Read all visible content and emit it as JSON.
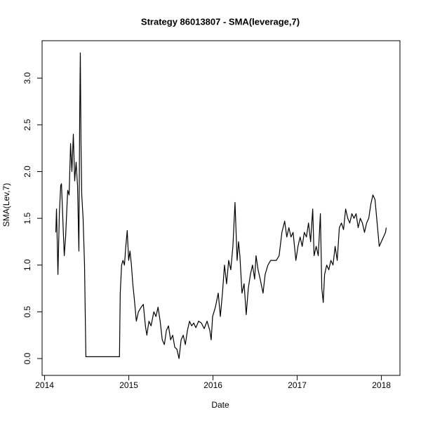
{
  "chart_data": {
    "type": "line",
    "title": "Strategy 86013807 - SMA(leverage,7)",
    "x_label": "Date",
    "y_label": "SMA(Lev,7)",
    "color": "#000000",
    "xlim": [
      2013.97,
      2018.22
    ],
    "xticks": [
      2014,
      2015,
      2016,
      2017,
      2018
    ],
    "ylim": [
      -0.18,
      3.4
    ],
    "yticks": [
      {
        "value": 0,
        "label": "0.0"
      },
      0.5,
      {
        "value": 1,
        "label": "1.0"
      },
      1.5,
      {
        "value": 2,
        "label": "2.0"
      },
      2.5,
      {
        "value": 3,
        "label": "3.0"
      }
    ],
    "x": [
      2014.133,
      2014.141,
      2014.15,
      2014.158,
      2014.175,
      2014.191,
      2014.2,
      2014.216,
      2014.233,
      2014.249,
      2014.274,
      2014.291,
      2014.308,
      2014.324,
      2014.341,
      2014.357,
      2014.374,
      2014.391,
      2014.407,
      2014.416,
      2014.424,
      2014.432,
      2014.441,
      2014.457,
      2014.474,
      2014.482,
      2014.49,
      2014.889,
      2014.898,
      2014.914,
      2014.931,
      2014.948,
      2014.964,
      2014.981,
      2014.998,
      2015.014,
      2015.031,
      2015.047,
      2015.064,
      2015.089,
      2015.114,
      2015.147,
      2015.172,
      2015.197,
      2015.214,
      2015.239,
      2015.264,
      2015.297,
      2015.322,
      2015.347,
      2015.372,
      2015.397,
      2015.422,
      2015.446,
      2015.471,
      2015.496,
      2015.521,
      2015.546,
      2015.571,
      2015.596,
      2015.621,
      2015.646,
      2015.671,
      2015.696,
      2015.721,
      2015.746,
      2015.771,
      2015.796,
      2015.829,
      2015.862,
      2015.895,
      2015.929,
      2015.962,
      2015.978,
      2015.995,
      2016.028,
      2016.062,
      2016.087,
      2016.112,
      2016.136,
      2016.161,
      2016.186,
      2016.211,
      2016.236,
      2016.261,
      2016.286,
      2016.303,
      2016.319,
      2016.344,
      2016.369,
      2016.394,
      2016.419,
      2016.444,
      2016.469,
      2016.494,
      2016.511,
      2016.535,
      2016.56,
      2016.594,
      2016.619,
      2016.652,
      2016.685,
      2016.718,
      2016.752,
      2016.785,
      2016.818,
      2016.851,
      2016.876,
      2016.901,
      2016.926,
      2016.951,
      2016.984,
      2017.009,
      2017.034,
      2017.059,
      2017.084,
      2017.109,
      2017.134,
      2017.159,
      2017.184,
      2017.2,
      2017.225,
      2017.25,
      2017.275,
      2017.292,
      2017.309,
      2017.325,
      2017.35,
      2017.375,
      2017.4,
      2017.425,
      2017.45,
      2017.475,
      2017.5,
      2017.525,
      2017.55,
      2017.575,
      2017.6,
      2017.624,
      2017.649,
      2017.674,
      2017.699,
      2017.724,
      2017.749,
      2017.774,
      2017.799,
      2017.824,
      2017.849,
      2017.874,
      2017.899,
      2017.924,
      2017.949,
      2017.974,
      2017.999,
      2018.024,
      2018.049,
      2018.057
    ],
    "values": [
      1.35,
      1.6,
      1.25,
      0.9,
      1.55,
      1.85,
      1.87,
      1.5,
      1.1,
      1.3,
      1.8,
      1.75,
      2.3,
      2.0,
      2.4,
      1.9,
      2.1,
      1.85,
      1.15,
      2.55,
      3.27,
      2.3,
      1.75,
      1.5,
      1.0,
      0.5,
      0.02,
      0.02,
      0.7,
      1.0,
      1.05,
      1.0,
      1.2,
      1.37,
      1.05,
      1.15,
      1.0,
      0.8,
      0.65,
      0.4,
      0.5,
      0.55,
      0.58,
      0.35,
      0.25,
      0.4,
      0.35,
      0.5,
      0.45,
      0.55,
      0.4,
      0.2,
      0.15,
      0.3,
      0.35,
      0.2,
      0.25,
      0.12,
      0.1,
      0.0,
      0.2,
      0.25,
      0.15,
      0.3,
      0.4,
      0.35,
      0.38,
      0.33,
      0.4,
      0.38,
      0.32,
      0.4,
      0.3,
      0.2,
      0.45,
      0.55,
      0.7,
      0.45,
      0.7,
      1.0,
      0.8,
      1.05,
      0.95,
      1.2,
      1.67,
      1.05,
      1.25,
      1.1,
      0.7,
      0.8,
      0.47,
      0.75,
      0.9,
      1.0,
      0.85,
      1.1,
      0.95,
      0.85,
      0.7,
      0.9,
      1.0,
      1.05,
      1.05,
      1.05,
      1.1,
      1.35,
      1.47,
      1.3,
      1.4,
      1.3,
      1.35,
      1.05,
      1.2,
      1.3,
      1.2,
      1.35,
      1.3,
      1.45,
      1.25,
      1.6,
      1.1,
      1.2,
      1.1,
      1.55,
      0.75,
      0.6,
      0.9,
      1.0,
      0.95,
      1.05,
      1.0,
      1.2,
      1.05,
      1.4,
      1.45,
      1.38,
      1.6,
      1.5,
      1.45,
      1.55,
      1.5,
      1.55,
      1.4,
      1.5,
      1.45,
      1.35,
      1.45,
      1.5,
      1.65,
      1.75,
      1.7,
      1.45,
      1.2,
      1.25,
      1.3,
      1.35,
      1.4
    ]
  }
}
